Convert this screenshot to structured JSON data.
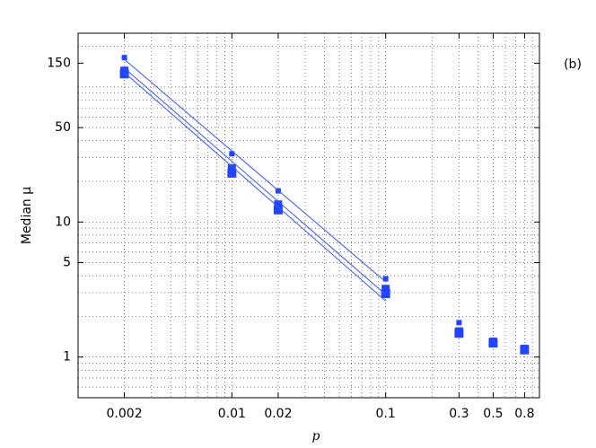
{
  "chart_data": {
    "type": "scatter",
    "log_x": true,
    "log_y": true,
    "grid": true,
    "x_label": "p",
    "y_label": "Median μ",
    "annotation": "(b)",
    "xlim": [
      0.001,
      1
    ],
    "ylim": [
      0.5,
      250
    ],
    "xticks": [
      0.002,
      0.01,
      0.02,
      0.1,
      0.3,
      0.5,
      0.8
    ],
    "yticks": [
      1,
      5,
      10,
      50,
      150
    ],
    "series": [
      {
        "kind": "points",
        "color": "#2244ff",
        "x": [
          0.002,
          0.01,
          0.02,
          0.1,
          0.3,
          0.5,
          0.8
        ],
        "values": [
          165,
          32,
          17,
          3.8,
          1.8,
          1.33,
          1.18
        ]
      },
      {
        "kind": "points",
        "color": "#2244ff",
        "x": [
          0.002,
          0.01,
          0.02,
          0.1,
          0.3,
          0.5,
          0.8
        ],
        "values": [
          132,
          25,
          13.5,
          3.2,
          1.55,
          1.3,
          1.15
        ]
      },
      {
        "kind": "points",
        "color": "#2244ff",
        "x": [
          0.002,
          0.01,
          0.02,
          0.1,
          0.3,
          0.5,
          0.8
        ],
        "values": [
          125,
          23,
          12.3,
          2.95,
          1.5,
          1.27,
          1.13
        ]
      },
      {
        "kind": "line",
        "color": "#3355ff",
        "x": [
          0.002,
          0.1
        ],
        "values": [
          160,
          3.6
        ]
      },
      {
        "kind": "line",
        "color": "#3355ff",
        "x": [
          0.002,
          0.1
        ],
        "values": [
          138,
          2.9
        ]
      },
      {
        "kind": "line",
        "color": "#3355ff",
        "x": [
          0.002,
          0.1
        ],
        "values": [
          128,
          2.6
        ]
      }
    ]
  }
}
